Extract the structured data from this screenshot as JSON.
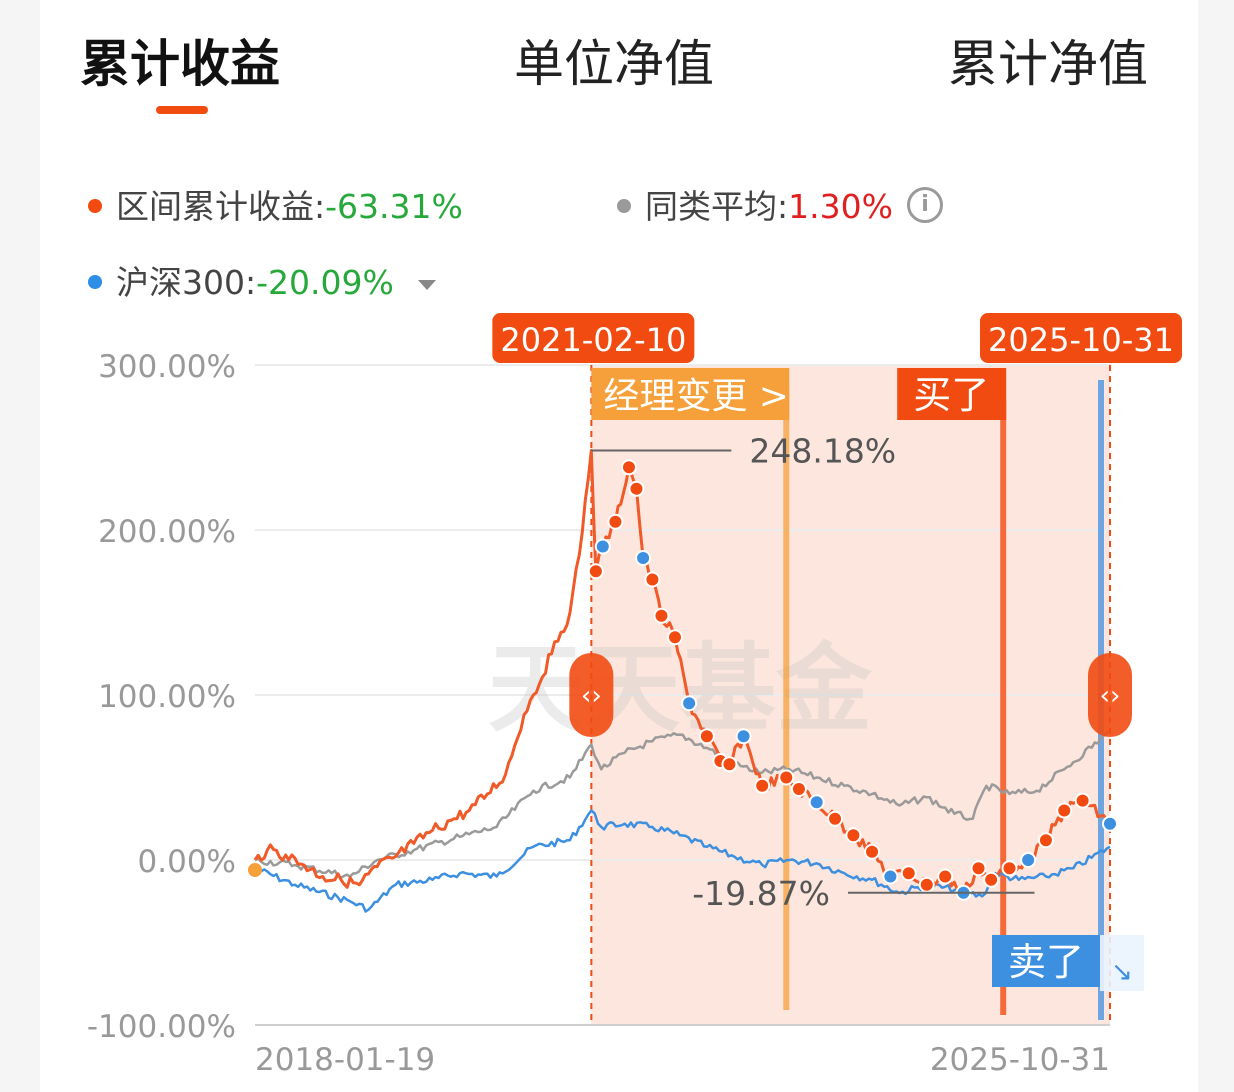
{
  "tabs": [
    {
      "label": "累计收益",
      "active": true
    },
    {
      "label": "单位净值",
      "active": false
    },
    {
      "label": "累计净值",
      "active": false
    }
  ],
  "legend": {
    "interval": {
      "label": "区间累计收益:",
      "value": "-63.31%",
      "color": "#f24b12"
    },
    "peer": {
      "label": "同类平均:",
      "value": "1.30%",
      "color": "#9a9a9a",
      "icon": "info-icon"
    },
    "index": {
      "label": "沪深300:",
      "value": "-20.09%",
      "color": "#2d8ee8",
      "icon": "dropdown-caret-icon"
    }
  },
  "watermark": "天天基金",
  "colors": {
    "fund": "#f05a28",
    "peer": "#9a9a9a",
    "index": "#3d8fe0",
    "range_fill": "#fde6dd",
    "badge": "#f24b12",
    "manager_badge": "#f5a03a",
    "sell_badge": "#3d8fe0",
    "gain_fill": "#7cc24a"
  },
  "chart_data": {
    "type": "line",
    "ylim": [
      -100,
      300
    ],
    "yticks": [
      "300.00%",
      "200.00%",
      "100.00%",
      "0.00%",
      "-100.00%"
    ],
    "ytick_values": [
      300,
      200,
      100,
      0,
      -100
    ],
    "x_start_label": "2018-01-19",
    "x_end_label": "2025-10-31",
    "x_range": [
      "2018-01-19",
      "2025-10-31"
    ],
    "selection": {
      "start": "2021-02-10",
      "end": "2025-10-31",
      "start_label": "2021-02-10",
      "end_label": "2025-10-31"
    },
    "markers": [
      {
        "date": "2022-11-20",
        "label": "经理变更 >",
        "kind": "manager"
      },
      {
        "date": "2024-11-10",
        "label": "买了",
        "kind": "buy"
      },
      {
        "date": "2025-10-31",
        "label": "卖了",
        "kind": "sell"
      }
    ],
    "annotations": [
      {
        "label": "248.18%",
        "value": 248.18,
        "date": "2021-02-10"
      },
      {
        "label": "-19.87%",
        "value": -19.87,
        "date": "2024-06-01"
      }
    ],
    "series": [
      {
        "name": "区间累计收益",
        "color": "#f05a28",
        "points": [
          [
            "2018-01-19",
            0
          ],
          [
            "2018-03-01",
            6
          ],
          [
            "2018-05-01",
            3
          ],
          [
            "2018-07-01",
            -3
          ],
          [
            "2018-09-01",
            -10
          ],
          [
            "2018-11-01",
            -12
          ],
          [
            "2019-01-01",
            -15
          ],
          [
            "2019-03-01",
            -4
          ],
          [
            "2019-05-01",
            2
          ],
          [
            "2019-07-01",
            10
          ],
          [
            "2019-09-01",
            18
          ],
          [
            "2019-11-01",
            24
          ],
          [
            "2020-01-01",
            30
          ],
          [
            "2020-03-01",
            40
          ],
          [
            "2020-05-01",
            52
          ],
          [
            "2020-07-01",
            88
          ],
          [
            "2020-08-01",
            100
          ],
          [
            "2020-10-01",
            125
          ],
          [
            "2020-11-01",
            138
          ],
          [
            "2020-12-01",
            150
          ],
          [
            "2021-01-01",
            185
          ],
          [
            "2021-02-10",
            248.18
          ],
          [
            "2021-02-25",
            175
          ],
          [
            "2021-03-20",
            190
          ],
          [
            "2021-05-01",
            205
          ],
          [
            "2021-06-15",
            238
          ],
          [
            "2021-07-10",
            225
          ],
          [
            "2021-08-01",
            183
          ],
          [
            "2021-09-01",
            170
          ],
          [
            "2021-10-01",
            148
          ],
          [
            "2021-11-15",
            135
          ],
          [
            "2022-01-01",
            95
          ],
          [
            "2022-03-01",
            75
          ],
          [
            "2022-04-15",
            60
          ],
          [
            "2022-05-15",
            58
          ],
          [
            "2022-07-01",
            75
          ],
          [
            "2022-09-01",
            45
          ],
          [
            "2022-11-20",
            50
          ],
          [
            "2023-01-01",
            43
          ],
          [
            "2023-03-01",
            35
          ],
          [
            "2023-05-01",
            25
          ],
          [
            "2023-07-01",
            15
          ],
          [
            "2023-09-01",
            5
          ],
          [
            "2023-11-01",
            -10
          ],
          [
            "2024-01-01",
            -8
          ],
          [
            "2024-03-01",
            -15
          ],
          [
            "2024-05-01",
            -10
          ],
          [
            "2024-07-01",
            -19.87
          ],
          [
            "2024-08-20",
            -5
          ],
          [
            "2024-10-01",
            -12
          ],
          [
            "2024-12-01",
            -5
          ],
          [
            "2025-02-01",
            0
          ],
          [
            "2025-04-01",
            12
          ],
          [
            "2025-06-01",
            30
          ],
          [
            "2025-08-01",
            36
          ],
          [
            "2025-10-31",
            22
          ]
        ]
      },
      {
        "name": "同类平均",
        "color": "#9a9a9a",
        "points": [
          [
            "2018-01-19",
            0
          ],
          [
            "2018-06-01",
            -3
          ],
          [
            "2018-12-01",
            -10
          ],
          [
            "2019-03-01",
            0
          ],
          [
            "2019-07-01",
            6
          ],
          [
            "2019-12-01",
            14
          ],
          [
            "2020-04-01",
            20
          ],
          [
            "2020-08-01",
            42
          ],
          [
            "2020-12-01",
            50
          ],
          [
            "2021-02-10",
            70
          ],
          [
            "2021-03-15",
            55
          ],
          [
            "2021-06-01",
            65
          ],
          [
            "2021-09-01",
            72
          ],
          [
            "2021-12-01",
            76
          ],
          [
            "2022-03-01",
            68
          ],
          [
            "2022-06-01",
            58
          ],
          [
            "2022-09-01",
            53
          ],
          [
            "2022-12-01",
            55
          ],
          [
            "2023-03-01",
            50
          ],
          [
            "2023-06-01",
            45
          ],
          [
            "2023-09-01",
            40
          ],
          [
            "2023-12-01",
            33
          ],
          [
            "2024-03-01",
            38
          ],
          [
            "2024-06-01",
            28
          ],
          [
            "2024-08-01",
            25
          ],
          [
            "2024-09-15",
            45
          ],
          [
            "2024-12-01",
            40
          ],
          [
            "2025-03-01",
            42
          ],
          [
            "2025-06-01",
            55
          ],
          [
            "2025-10-31",
            78
          ]
        ]
      },
      {
        "name": "沪深300",
        "color": "#3d8fe0",
        "points": [
          [
            "2018-01-19",
            -5
          ],
          [
            "2018-06-01",
            -15
          ],
          [
            "2018-12-01",
            -25
          ],
          [
            "2019-02-01",
            -30
          ],
          [
            "2019-05-01",
            -15
          ],
          [
            "2019-09-01",
            -12
          ],
          [
            "2019-12-01",
            -8
          ],
          [
            "2020-04-01",
            -10
          ],
          [
            "2020-08-01",
            8
          ],
          [
            "2020-12-01",
            12
          ],
          [
            "2021-02-10",
            30
          ],
          [
            "2021-03-15",
            20
          ],
          [
            "2021-06-01",
            22
          ],
          [
            "2021-09-01",
            20
          ],
          [
            "2021-12-01",
            15
          ],
          [
            "2022-03-01",
            8
          ],
          [
            "2022-06-01",
            2
          ],
          [
            "2022-09-01",
            -3
          ],
          [
            "2022-12-01",
            0
          ],
          [
            "2023-03-01",
            -2
          ],
          [
            "2023-06-01",
            -8
          ],
          [
            "2023-09-01",
            -12
          ],
          [
            "2023-12-01",
            -20
          ],
          [
            "2024-03-01",
            -15
          ],
          [
            "2024-06-01",
            -18
          ],
          [
            "2024-09-01",
            -22
          ],
          [
            "2024-10-15",
            -8
          ],
          [
            "2025-01-01",
            -12
          ],
          [
            "2025-04-01",
            -10
          ],
          [
            "2025-07-01",
            -5
          ],
          [
            "2025-10-31",
            8
          ]
        ]
      }
    ]
  }
}
